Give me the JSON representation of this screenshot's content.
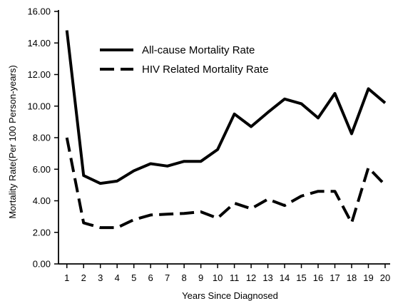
{
  "chart_data": {
    "type": "line",
    "title": "",
    "xlabel": "Years Since Diagnosed",
    "ylabel": "Mortality Rate(Per 100 Person-years)",
    "x": [
      1,
      2,
      3,
      4,
      5,
      6,
      7,
      8,
      9,
      10,
      11,
      12,
      13,
      14,
      15,
      16,
      17,
      18,
      19,
      20
    ],
    "x_tick_labels": [
      "1",
      "2",
      "3",
      "4",
      "5",
      "6",
      "7",
      "8",
      "9",
      "10",
      "11",
      "12",
      "13",
      "14",
      "15",
      "16",
      "17",
      "18",
      "19",
      "20"
    ],
    "y_tick_labels": [
      "0.00",
      "2.00",
      "4.00",
      "6.00",
      "8.00",
      "10.00",
      "12.00",
      "14.00",
      "16.00"
    ],
    "ylim": [
      0,
      16
    ],
    "xlim": [
      0.5,
      20.3
    ],
    "grid": false,
    "legend_placement": "top-center",
    "series": [
      {
        "name": "All-cause Mortality Rate",
        "style": "solid",
        "color": "#000000",
        "values": [
          14.8,
          5.6,
          5.1,
          5.25,
          5.9,
          6.35,
          6.2,
          6.5,
          6.5,
          7.25,
          9.5,
          8.7,
          9.6,
          10.45,
          10.15,
          9.25,
          10.8,
          8.25,
          11.1,
          10.2
        ]
      },
      {
        "name": "HIV Related Mortality Rate",
        "style": "dashed",
        "color": "#000000",
        "values": [
          8.0,
          2.6,
          2.3,
          2.3,
          2.8,
          3.1,
          3.15,
          3.2,
          3.3,
          2.9,
          3.85,
          3.5,
          4.1,
          3.7,
          4.3,
          4.6,
          4.6,
          2.6,
          6.1,
          5.0
        ]
      }
    ]
  }
}
